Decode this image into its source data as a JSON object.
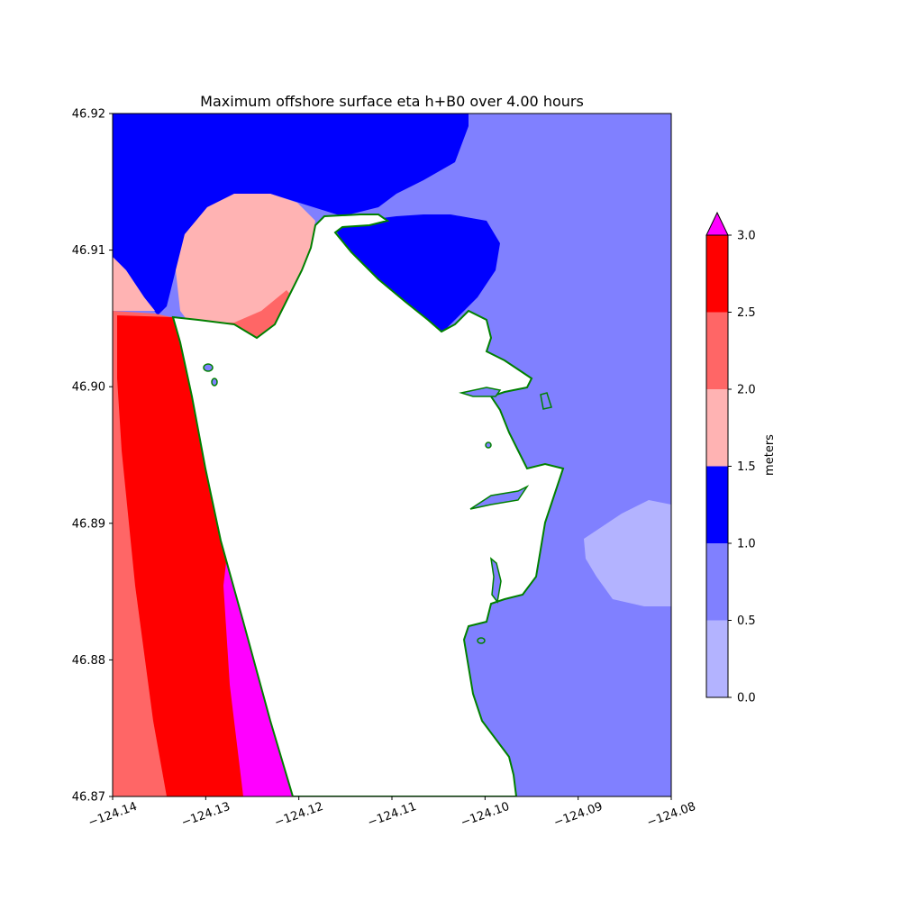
{
  "title": "Maximum offshore surface eta h+B0 over 4.00 hours",
  "x_axis": {
    "range": [
      -124.14,
      -124.08
    ],
    "ticks": [
      -124.14,
      -124.13,
      -124.12,
      -124.11,
      -124.1,
      -124.09,
      -124.08
    ],
    "tick_labels": [
      "−124.14",
      "−124.13",
      "−124.12",
      "−124.11",
      "−124.10",
      "−124.09",
      "−124.08"
    ]
  },
  "y_axis": {
    "range": [
      46.87,
      46.92
    ],
    "ticks": [
      46.87,
      46.88,
      46.89,
      46.9,
      46.91,
      46.92
    ],
    "tick_labels": [
      "46.87",
      "46.88",
      "46.89",
      "46.90",
      "46.91",
      "46.92"
    ]
  },
  "colorbar": {
    "label": "meters",
    "levels": [
      0.0,
      0.5,
      1.0,
      1.5,
      2.0,
      2.5,
      3.0
    ],
    "tick_labels": [
      "0.0",
      "0.5",
      "1.0",
      "1.5",
      "2.0",
      "2.5",
      "3.0"
    ],
    "colors": [
      "#b3b3ff",
      "#8080ff",
      "#0000ff",
      "#ffb3b3",
      "#ff6666",
      "#ff0000"
    ],
    "extend_color": "#ff00ff",
    "extend": "max"
  },
  "colors": {
    "land": "#ffffff",
    "shoreline": "#008000"
  }
}
